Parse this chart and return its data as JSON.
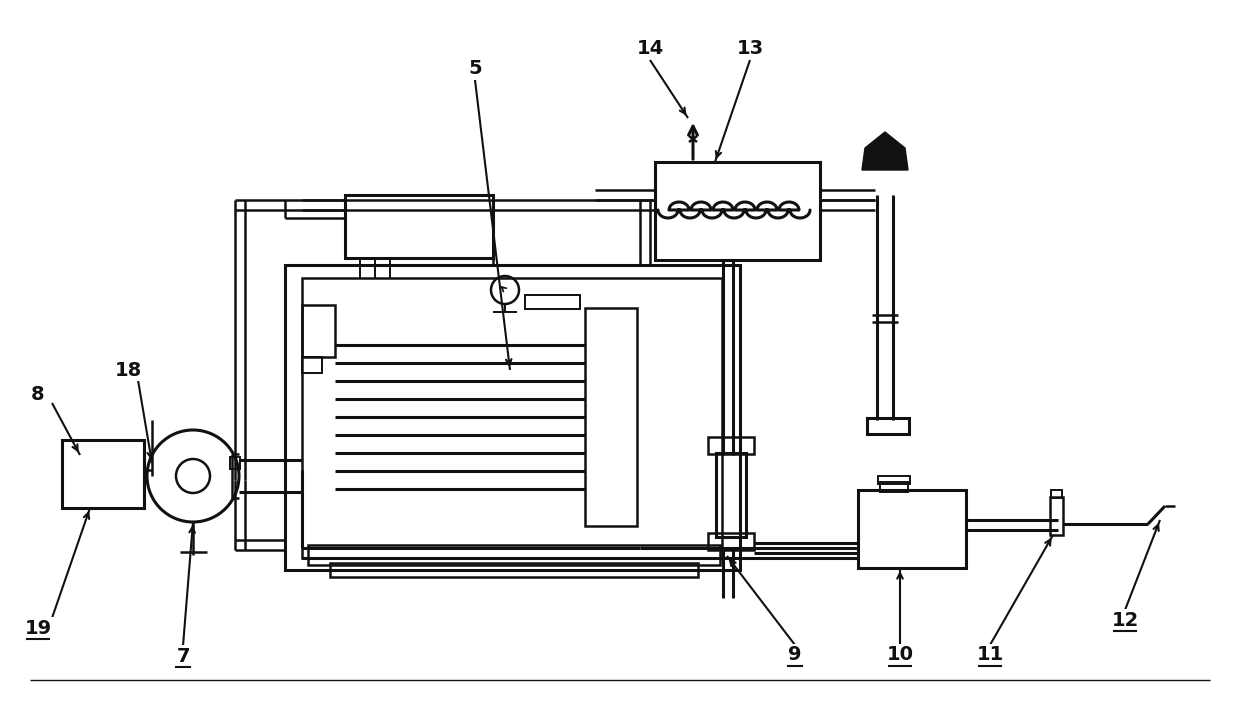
{
  "bg": "#ffffff",
  "lc": "#111111",
  "lw": 2.2,
  "lw2": 1.8,
  "lw3": 1.4,
  "fs": 14
}
